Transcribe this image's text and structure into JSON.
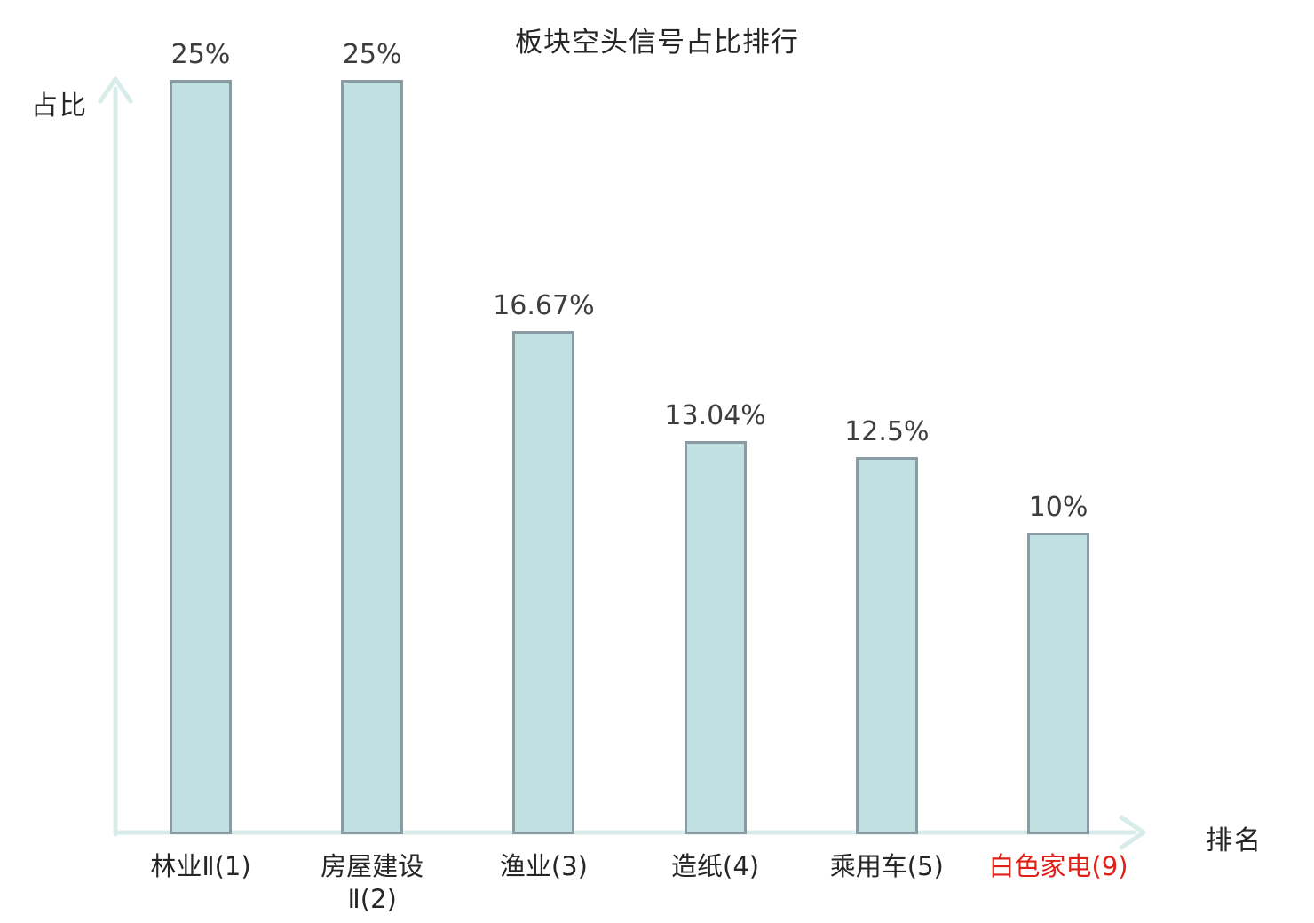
{
  "title": "板块空头信号占比排行",
  "axes": {
    "y_label": "占比",
    "x_label": "排名"
  },
  "colors": {
    "bar_fill": "#c1e0e2",
    "bar_border": "#8a9ba4",
    "axis": "#d8ecea",
    "text": "#262626",
    "value_text": "#3d3d3d",
    "highlight": "#e02018"
  },
  "chart_data": {
    "type": "bar",
    "title": "板块空头信号占比排行",
    "xlabel": "排名",
    "ylabel": "占比",
    "ylim": [
      0,
      25
    ],
    "grid": false,
    "legend": "none",
    "categories": [
      "林业Ⅱ(1)",
      "房屋建设Ⅱ(2)",
      "渔业(3)",
      "造纸(4)",
      "乘用车(5)",
      "白色家电(9)"
    ],
    "values": [
      25,
      25,
      16.67,
      13.04,
      12.5,
      10
    ],
    "value_labels": [
      "25%",
      "25%",
      "16.67%",
      "13.04%",
      "12.5%",
      "10%"
    ],
    "category_lines": [
      [
        "林业Ⅱ(1)"
      ],
      [
        "房屋建设",
        "Ⅱ(2)"
      ],
      [
        "渔业(3)"
      ],
      [
        "造纸(4)"
      ],
      [
        "乘用车(5)"
      ],
      [
        "白色家电(9)"
      ]
    ],
    "highlighted_category_index": 5,
    "highlighted_category": "白色家电(9)"
  }
}
